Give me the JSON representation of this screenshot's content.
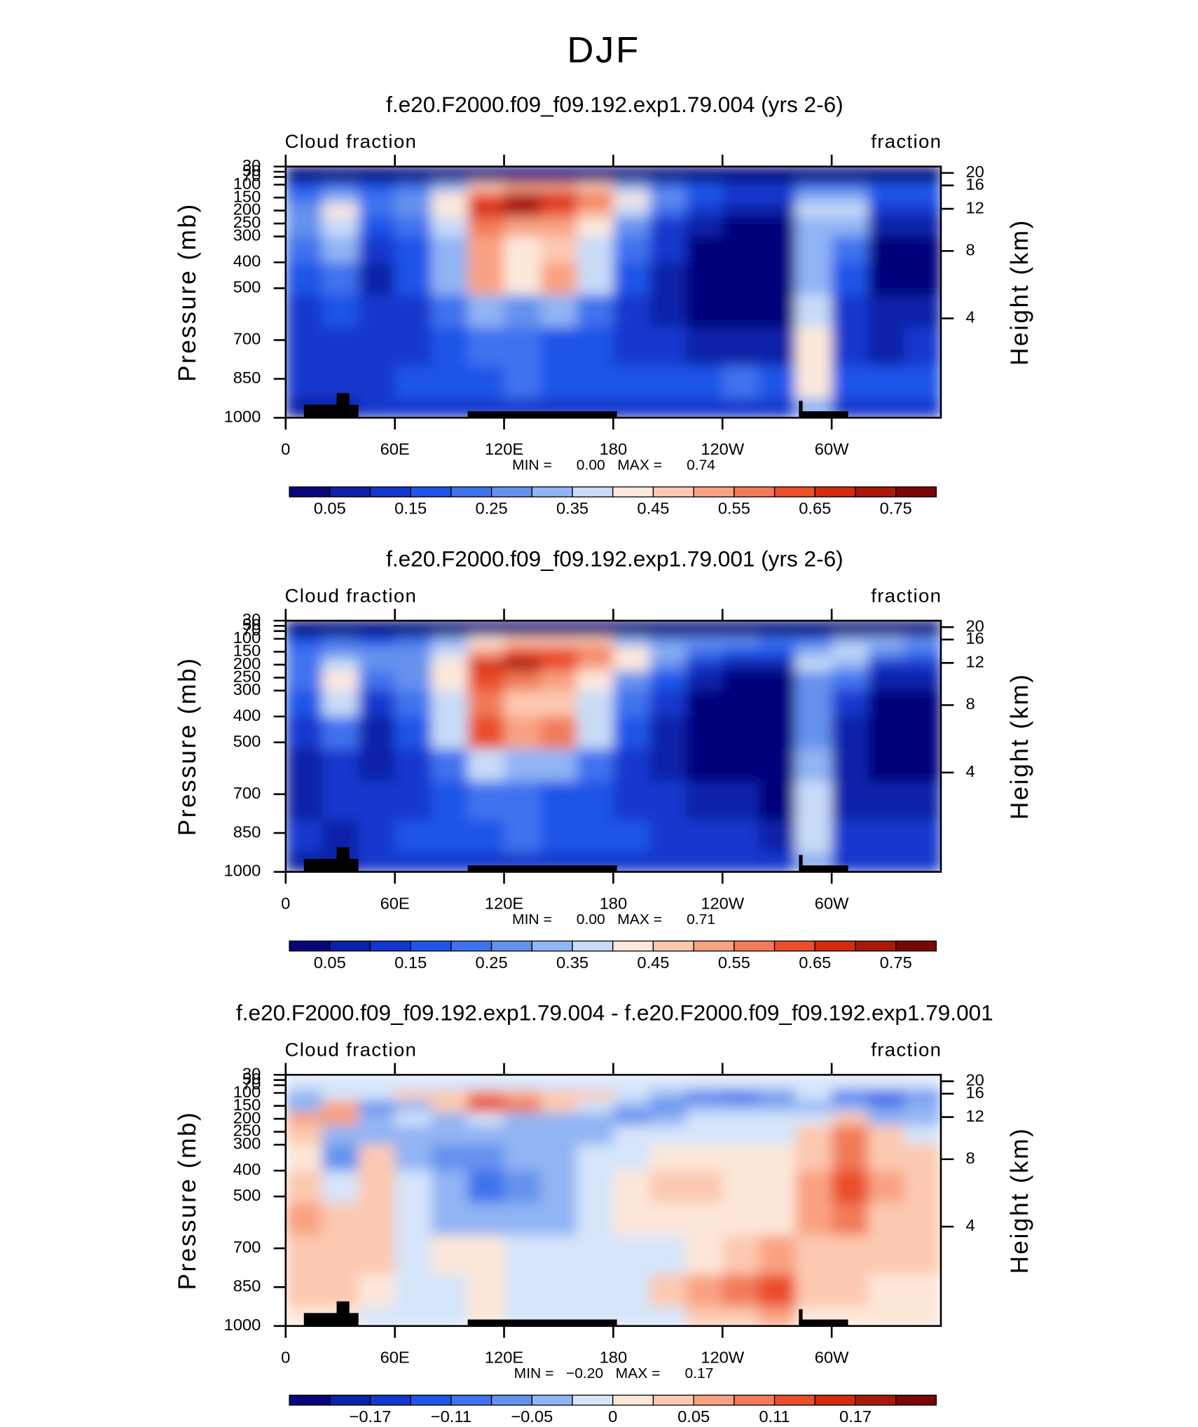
{
  "suptitle": "DJF",
  "chart_data": [
    {
      "type": "contour",
      "title": "f.e20.F2000.f09_f09.192.exp1.79.004 (yrs 2-6)",
      "subtitle_left": "Cloud fraction",
      "subtitle_right": "fraction",
      "annotation": "MIN =      0.00   MAX =      0.74",
      "ylabel": "Pressure (mb)",
      "y2label": "Height (km)",
      "xlim": [
        0,
        360
      ],
      "xticks": [
        0,
        {
          "value": 60,
          "label": "60E"
        },
        {
          "value": 120,
          "label": "120E"
        },
        180,
        {
          "value": 240,
          "label": "120W"
        },
        {
          "value": 300,
          "label": "60W"
        }
      ],
      "ylim": [
        1000,
        30
      ],
      "yticks": [
        30,
        50,
        70,
        100,
        150,
        200,
        250,
        300,
        400,
        500,
        700,
        850,
        1000
      ],
      "y2ticks": [
        4,
        8,
        12,
        16,
        20
      ],
      "x_edges": [
        0,
        20,
        40,
        60,
        80,
        100,
        120,
        140,
        160,
        180,
        200,
        220,
        240,
        260,
        280,
        300,
        320,
        340,
        360
      ],
      "p_edges": [
        30,
        90,
        130,
        175,
        225,
        300,
        400,
        525,
        650,
        800,
        925,
        1000
      ],
      "z": [
        [
          0.03,
          0.03,
          0.03,
          0.03,
          0.03,
          0.03,
          0.03,
          0.03,
          0.03,
          0.03,
          0.03,
          0.03,
          0.03,
          0.03,
          0.03,
          0.03,
          0.03,
          0.03
        ],
        [
          0.15,
          0.2,
          0.15,
          0.2,
          0.3,
          0.45,
          0.5,
          0.5,
          0.45,
          0.3,
          0.2,
          0.15,
          0.12,
          0.12,
          0.2,
          0.2,
          0.15,
          0.15
        ],
        [
          0.2,
          0.3,
          0.2,
          0.25,
          0.4,
          0.6,
          0.7,
          0.65,
          0.55,
          0.4,
          0.25,
          0.15,
          0.1,
          0.1,
          0.3,
          0.3,
          0.15,
          0.15
        ],
        [
          0.25,
          0.4,
          0.2,
          0.25,
          0.4,
          0.65,
          0.7,
          0.6,
          0.5,
          0.35,
          0.2,
          0.1,
          0.05,
          0.05,
          0.35,
          0.35,
          0.1,
          0.1
        ],
        [
          0.25,
          0.35,
          0.15,
          0.2,
          0.35,
          0.55,
          0.5,
          0.5,
          0.4,
          0.25,
          0.12,
          0.05,
          0.03,
          0.03,
          0.3,
          0.3,
          0.05,
          0.05
        ],
        [
          0.2,
          0.3,
          0.1,
          0.15,
          0.3,
          0.5,
          0.4,
          0.45,
          0.35,
          0.2,
          0.1,
          0.03,
          0.02,
          0.02,
          0.3,
          0.2,
          0.03,
          0.03
        ],
        [
          0.15,
          0.2,
          0.08,
          0.15,
          0.3,
          0.5,
          0.4,
          0.5,
          0.35,
          0.15,
          0.08,
          0.02,
          0.02,
          0.02,
          0.3,
          0.15,
          0.03,
          0.03
        ],
        [
          0.12,
          0.15,
          0.1,
          0.12,
          0.2,
          0.3,
          0.25,
          0.3,
          0.2,
          0.12,
          0.08,
          0.03,
          0.02,
          0.02,
          0.35,
          0.1,
          0.05,
          0.05
        ],
        [
          0.1,
          0.12,
          0.1,
          0.1,
          0.15,
          0.2,
          0.2,
          0.15,
          0.15,
          0.12,
          0.1,
          0.08,
          0.05,
          0.05,
          0.4,
          0.1,
          0.08,
          0.1
        ],
        [
          0.12,
          0.1,
          0.12,
          0.15,
          0.15,
          0.15,
          0.2,
          0.15,
          0.15,
          0.15,
          0.15,
          0.15,
          0.2,
          0.15,
          0.4,
          0.15,
          0.15,
          0.15
        ],
        [
          0.08,
          0.08,
          0.1,
          0.12,
          0.1,
          0.1,
          0.1,
          0.1,
          0.1,
          0.1,
          0.1,
          0.1,
          0.1,
          0.1,
          0.3,
          0.1,
          0.1,
          0.1
        ]
      ],
      "levels": [
        0.05,
        0.1,
        0.15,
        0.2,
        0.25,
        0.3,
        0.35,
        0.4,
        0.45,
        0.5,
        0.55,
        0.6,
        0.65,
        0.7,
        0.75
      ],
      "colors": [
        "#06067a",
        "#0b22a8",
        "#1437cd",
        "#1f55e8",
        "#3f72ee",
        "#6592ee",
        "#91b4f4",
        "#c8dcf8",
        "#fde9dc",
        "#fcc9b0",
        "#f9a282",
        "#f27a58",
        "#ea4e2b",
        "#d42a10",
        "#a8190a",
        "#7a0606"
      ],
      "cbticks": [
        0.05,
        0.15,
        0.25,
        0.35,
        0.45,
        0.55,
        0.65,
        0.75
      ],
      "surface": [
        {
          "lon": [
            10,
            40
          ],
          "p": 950
        },
        {
          "lon": [
            28,
            35
          ],
          "p": 905
        },
        {
          "lon": [
            100,
            182
          ],
          "p": 975
        },
        {
          "lon": [
            282,
            309
          ],
          "p": 975
        },
        {
          "lon": [
            282,
            284
          ],
          "p": 935
        }
      ]
    },
    {
      "type": "contour",
      "title": "f.e20.F2000.f09_f09.192.exp1.79.001 (yrs 2-6)",
      "subtitle_left": "Cloud fraction",
      "subtitle_right": "fraction",
      "annotation": "MIN =      0.00   MAX =      0.71",
      "ylabel": "Pressure (mb)",
      "y2label": "Height (km)",
      "xlim": [
        0,
        360
      ],
      "xticks": [
        0,
        {
          "value": 60,
          "label": "60E"
        },
        {
          "value": 120,
          "label": "120E"
        },
        180,
        {
          "value": 240,
          "label": "120W"
        },
        {
          "value": 300,
          "label": "60W"
        }
      ],
      "ylim": [
        1000,
        30
      ],
      "yticks": [
        30,
        50,
        70,
        100,
        150,
        200,
        250,
        300,
        400,
        500,
        700,
        850,
        1000
      ],
      "y2ticks": [
        4,
        8,
        12,
        16,
        20
      ],
      "x_edges": [
        0,
        20,
        40,
        60,
        80,
        100,
        120,
        140,
        160,
        180,
        200,
        220,
        240,
        260,
        280,
        300,
        320,
        340,
        360
      ],
      "p_edges": [
        30,
        90,
        130,
        175,
        225,
        300,
        400,
        525,
        650,
        800,
        925,
        1000
      ],
      "z": [
        [
          0.03,
          0.03,
          0.03,
          0.03,
          0.03,
          0.03,
          0.03,
          0.03,
          0.03,
          0.03,
          0.03,
          0.03,
          0.03,
          0.03,
          0.03,
          0.03,
          0.03,
          0.03
        ],
        [
          0.15,
          0.2,
          0.15,
          0.2,
          0.3,
          0.4,
          0.45,
          0.45,
          0.45,
          0.3,
          0.25,
          0.25,
          0.25,
          0.2,
          0.2,
          0.3,
          0.3,
          0.25
        ],
        [
          0.2,
          0.25,
          0.25,
          0.25,
          0.35,
          0.5,
          0.6,
          0.62,
          0.55,
          0.4,
          0.3,
          0.2,
          0.15,
          0.15,
          0.3,
          0.35,
          0.25,
          0.2
        ],
        [
          0.2,
          0.35,
          0.25,
          0.25,
          0.4,
          0.65,
          0.7,
          0.6,
          0.5,
          0.4,
          0.25,
          0.12,
          0.08,
          0.08,
          0.35,
          0.3,
          0.12,
          0.12
        ],
        [
          0.2,
          0.4,
          0.2,
          0.25,
          0.4,
          0.6,
          0.55,
          0.5,
          0.4,
          0.28,
          0.15,
          0.05,
          0.03,
          0.03,
          0.28,
          0.22,
          0.05,
          0.05
        ],
        [
          0.15,
          0.35,
          0.1,
          0.2,
          0.35,
          0.55,
          0.45,
          0.45,
          0.35,
          0.2,
          0.1,
          0.03,
          0.02,
          0.02,
          0.28,
          0.12,
          0.03,
          0.03
        ],
        [
          0.12,
          0.2,
          0.06,
          0.18,
          0.35,
          0.6,
          0.5,
          0.55,
          0.38,
          0.15,
          0.08,
          0.02,
          0.02,
          0.02,
          0.25,
          0.05,
          0.03,
          0.03
        ],
        [
          0.08,
          0.12,
          0.08,
          0.12,
          0.22,
          0.35,
          0.3,
          0.32,
          0.2,
          0.12,
          0.08,
          0.03,
          0.02,
          0.02,
          0.3,
          0.05,
          0.03,
          0.04
        ],
        [
          0.08,
          0.1,
          0.1,
          0.1,
          0.15,
          0.2,
          0.2,
          0.15,
          0.15,
          0.12,
          0.1,
          0.08,
          0.05,
          0.03,
          0.38,
          0.08,
          0.06,
          0.08
        ],
        [
          0.1,
          0.08,
          0.12,
          0.15,
          0.15,
          0.15,
          0.2,
          0.15,
          0.15,
          0.15,
          0.12,
          0.1,
          0.1,
          0.05,
          0.38,
          0.12,
          0.12,
          0.12
        ],
        [
          0.08,
          0.08,
          0.1,
          0.12,
          0.1,
          0.1,
          0.1,
          0.1,
          0.1,
          0.1,
          0.1,
          0.1,
          0.1,
          0.1,
          0.3,
          0.1,
          0.1,
          0.1
        ]
      ],
      "levels": [
        0.05,
        0.1,
        0.15,
        0.2,
        0.25,
        0.3,
        0.35,
        0.4,
        0.45,
        0.5,
        0.55,
        0.6,
        0.65,
        0.7,
        0.75
      ],
      "colors": [
        "#06067a",
        "#0b22a8",
        "#1437cd",
        "#1f55e8",
        "#3f72ee",
        "#6592ee",
        "#91b4f4",
        "#c8dcf8",
        "#fde9dc",
        "#fcc9b0",
        "#f9a282",
        "#f27a58",
        "#ea4e2b",
        "#d42a10",
        "#a8190a",
        "#7a0606"
      ],
      "cbticks": [
        0.05,
        0.15,
        0.25,
        0.35,
        0.45,
        0.55,
        0.65,
        0.75
      ],
      "surface": [
        {
          "lon": [
            10,
            40
          ],
          "p": 950
        },
        {
          "lon": [
            28,
            35
          ],
          "p": 905
        },
        {
          "lon": [
            100,
            182
          ],
          "p": 975
        },
        {
          "lon": [
            282,
            309
          ],
          "p": 975
        },
        {
          "lon": [
            282,
            284
          ],
          "p": 935
        }
      ]
    },
    {
      "type": "contour",
      "title": "f.e20.F2000.f09_f09.192.exp1.79.004 - f.e20.F2000.f09_f09.192.exp1.79.001",
      "subtitle_left": "Cloud fraction",
      "subtitle_right": "fraction",
      "annotation": "MIN =   −0.20   MAX =      0.17",
      "ylabel": "Pressure (mb)",
      "y2label": "Height (km)",
      "xlim": [
        0,
        360
      ],
      "xticks": [
        0,
        {
          "value": 60,
          "label": "60E"
        },
        {
          "value": 120,
          "label": "120E"
        },
        180,
        {
          "value": 240,
          "label": "120W"
        },
        {
          "value": 300,
          "label": "60W"
        }
      ],
      "ylim": [
        1000,
        30
      ],
      "yticks": [
        30,
        50,
        70,
        100,
        150,
        200,
        250,
        300,
        400,
        500,
        700,
        850,
        1000
      ],
      "y2ticks": [
        4,
        8,
        12,
        16,
        20
      ],
      "x_edges": [
        0,
        20,
        40,
        60,
        80,
        100,
        120,
        140,
        160,
        180,
        200,
        220,
        240,
        260,
        280,
        300,
        320,
        340,
        360
      ],
      "p_edges": [
        30,
        90,
        130,
        175,
        225,
        300,
        400,
        525,
        650,
        800,
        925,
        1000
      ],
      "z": [
        [
          -0.01,
          -0.01,
          -0.01,
          -0.01,
          -0.01,
          -0.01,
          -0.01,
          -0.01,
          -0.01,
          -0.01,
          -0.01,
          -0.01,
          -0.01,
          -0.01,
          -0.01,
          -0.01,
          -0.01,
          -0.01
        ],
        [
          -0.03,
          -0.01,
          -0.02,
          0.02,
          0.03,
          0.08,
          0.06,
          0.04,
          0.02,
          -0.01,
          -0.03,
          -0.1,
          -0.12,
          -0.06,
          -0.01,
          -0.1,
          -0.14,
          -0.08
        ],
        [
          -0.03,
          0.05,
          -0.06,
          -0.03,
          0.04,
          0.12,
          0.09,
          0.03,
          -0.02,
          -0.03,
          -0.06,
          -0.04,
          -0.04,
          -0.03,
          -0.03,
          -0.04,
          -0.08,
          -0.05
        ],
        [
          0.05,
          0.06,
          -0.04,
          -0.02,
          -0.03,
          -0.02,
          -0.04,
          -0.05,
          -0.03,
          -0.06,
          -0.03,
          -0.02,
          -0.02,
          -0.02,
          -0.01,
          0.03,
          -0.03,
          -0.04
        ],
        [
          0.02,
          -0.04,
          -0.03,
          -0.04,
          -0.05,
          -0.05,
          -0.04,
          -0.03,
          -0.03,
          -0.02,
          -0.01,
          -0.01,
          -0.01,
          -0.01,
          0.02,
          0.08,
          0.02,
          -0.01
        ],
        [
          0.01,
          -0.06,
          0.02,
          -0.04,
          -0.06,
          -0.06,
          -0.05,
          -0.04,
          -0.02,
          -0.01,
          0.01,
          0.01,
          0.01,
          0.01,
          0.03,
          0.1,
          0.04,
          0.02
        ],
        [
          0.04,
          -0.02,
          0.03,
          -0.02,
          -0.05,
          -0.09,
          -0.06,
          -0.04,
          -0.02,
          0.01,
          0.02,
          0.02,
          0.01,
          0.01,
          0.05,
          0.12,
          0.05,
          0.02
        ],
        [
          0.05,
          0.04,
          0.04,
          -0.01,
          -0.03,
          -0.04,
          -0.04,
          -0.03,
          -0.01,
          0.01,
          0.01,
          0.01,
          0.01,
          0.01,
          0.06,
          0.08,
          0.04,
          0.02
        ],
        [
          0.03,
          0.02,
          0.03,
          -0.01,
          0.01,
          0.01,
          -0.02,
          -0.02,
          -0.01,
          -0.01,
          -0.01,
          0.01,
          0.03,
          0.05,
          0.04,
          0.04,
          0.02,
          0.02
        ],
        [
          0.02,
          0.03,
          0.01,
          -0.01,
          -0.01,
          0.01,
          -0.01,
          -0.01,
          -0.01,
          -0.01,
          0.03,
          0.07,
          0.1,
          0.13,
          0.03,
          0.02,
          0.01,
          0.01
        ],
        [
          0.01,
          0.01,
          -0.01,
          -0.01,
          -0.01,
          0.01,
          -0.01,
          -0.01,
          -0.01,
          -0.01,
          -0.01,
          0.02,
          0.03,
          0.05,
          0.01,
          0.01,
          0.01,
          0.01
        ]
      ],
      "levels": [
        -0.2,
        -0.17,
        -0.14,
        -0.11,
        -0.08,
        -0.05,
        -0.02,
        0,
        0.02,
        0.05,
        0.08,
        0.11,
        0.14,
        0.17,
        0.2
      ],
      "colors": [
        "#06067a",
        "#0b22a8",
        "#1437cd",
        "#1f55e8",
        "#3f72ee",
        "#6592ee",
        "#91b4f4",
        "#d6e5fa",
        "#fde7d8",
        "#fcc9b0",
        "#f9a282",
        "#f27a58",
        "#ea4e2b",
        "#d42a10",
        "#a8190a",
        "#7a0606"
      ],
      "cbticks": [
        {
          "value": -0.17,
          "label": "−0.17"
        },
        {
          "value": -0.11,
          "label": "−0.11"
        },
        {
          "value": -0.05,
          "label": "−0.05"
        },
        0,
        0.05,
        0.11,
        0.17
      ],
      "surface": [
        {
          "lon": [
            10,
            40
          ],
          "p": 950
        },
        {
          "lon": [
            28,
            35
          ],
          "p": 905
        },
        {
          "lon": [
            100,
            182
          ],
          "p": 975
        },
        {
          "lon": [
            282,
            309
          ],
          "p": 975
        },
        {
          "lon": [
            282,
            284
          ],
          "p": 935
        }
      ]
    }
  ]
}
